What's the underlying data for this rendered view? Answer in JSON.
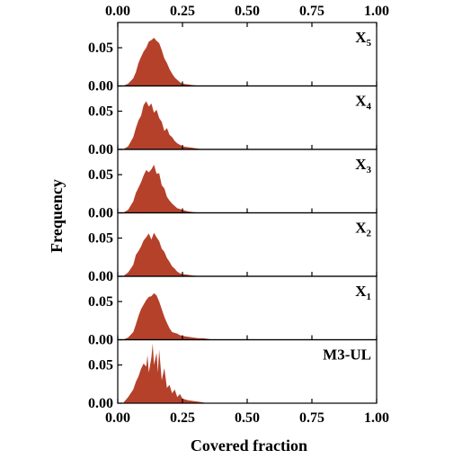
{
  "chart_data": {
    "type": "area",
    "xlabel": "Covered fraction",
    "ylabel": "Frequency",
    "xlim": [
      0,
      1.0
    ],
    "xticks": [
      "0.00",
      "0.25",
      "0.50",
      "0.75",
      "1.00"
    ],
    "ylim": [
      0,
      0.083
    ],
    "yticks": [
      "0.00",
      "0.05"
    ],
    "fill_color": "#b5412b",
    "panels": [
      {
        "label": "X",
        "subscript": "5",
        "x": [
          0.02,
          0.04,
          0.06,
          0.07,
          0.08,
          0.09,
          0.1,
          0.11,
          0.12,
          0.13,
          0.14,
          0.15,
          0.16,
          0.17,
          0.18,
          0.19,
          0.2,
          0.21,
          0.22,
          0.23,
          0.24,
          0.25,
          0.27,
          0.29,
          0.31,
          0.33
        ],
        "values": [
          0.0,
          0.003,
          0.01,
          0.018,
          0.03,
          0.038,
          0.045,
          0.05,
          0.058,
          0.06,
          0.063,
          0.059,
          0.056,
          0.047,
          0.036,
          0.03,
          0.022,
          0.016,
          0.011,
          0.008,
          0.005,
          0.003,
          0.002,
          0.001,
          0.0005,
          0.0
        ]
      },
      {
        "label": "X",
        "subscript": "4",
        "x": [
          0.02,
          0.04,
          0.06,
          0.07,
          0.08,
          0.09,
          0.1,
          0.11,
          0.12,
          0.13,
          0.14,
          0.15,
          0.16,
          0.17,
          0.18,
          0.19,
          0.2,
          0.21,
          0.22,
          0.23,
          0.24,
          0.25,
          0.27,
          0.29,
          0.31,
          0.33
        ],
        "values": [
          0.0,
          0.004,
          0.016,
          0.028,
          0.038,
          0.044,
          0.058,
          0.063,
          0.056,
          0.06,
          0.048,
          0.052,
          0.041,
          0.036,
          0.024,
          0.028,
          0.019,
          0.016,
          0.011,
          0.008,
          0.006,
          0.004,
          0.003,
          0.002,
          0.001,
          0.0
        ]
      },
      {
        "label": "X",
        "subscript": "3",
        "x": [
          0.02,
          0.04,
          0.06,
          0.07,
          0.08,
          0.09,
          0.1,
          0.11,
          0.12,
          0.13,
          0.14,
          0.15,
          0.16,
          0.17,
          0.18,
          0.19,
          0.2,
          0.21,
          0.22,
          0.23,
          0.24,
          0.25,
          0.27,
          0.29,
          0.31,
          0.33
        ],
        "values": [
          0.0,
          0.004,
          0.015,
          0.026,
          0.033,
          0.04,
          0.049,
          0.056,
          0.053,
          0.057,
          0.063,
          0.051,
          0.052,
          0.036,
          0.032,
          0.021,
          0.016,
          0.012,
          0.009,
          0.006,
          0.005,
          0.004,
          0.002,
          0.001,
          0.0005,
          0.0
        ]
      },
      {
        "label": "X",
        "subscript": "2",
        "x": [
          0.02,
          0.04,
          0.06,
          0.07,
          0.08,
          0.09,
          0.1,
          0.11,
          0.12,
          0.13,
          0.14,
          0.15,
          0.16,
          0.17,
          0.18,
          0.19,
          0.2,
          0.21,
          0.22,
          0.23,
          0.24,
          0.25,
          0.27,
          0.29,
          0.31,
          0.33
        ],
        "values": [
          0.0,
          0.005,
          0.015,
          0.028,
          0.033,
          0.039,
          0.047,
          0.051,
          0.056,
          0.048,
          0.057,
          0.051,
          0.046,
          0.036,
          0.032,
          0.024,
          0.019,
          0.013,
          0.01,
          0.006,
          0.004,
          0.003,
          0.002,
          0.001,
          0.0005,
          0.0
        ]
      },
      {
        "label": "X",
        "subscript": "1",
        "x": [
          0.02,
          0.04,
          0.06,
          0.07,
          0.08,
          0.09,
          0.1,
          0.11,
          0.12,
          0.13,
          0.14,
          0.15,
          0.16,
          0.17,
          0.18,
          0.19,
          0.2,
          0.21,
          0.22,
          0.23,
          0.24,
          0.25,
          0.27,
          0.29,
          0.31,
          0.33,
          0.35,
          0.37
        ],
        "values": [
          0.0,
          0.003,
          0.01,
          0.02,
          0.031,
          0.04,
          0.046,
          0.052,
          0.056,
          0.057,
          0.061,
          0.058,
          0.05,
          0.04,
          0.03,
          0.022,
          0.015,
          0.01,
          0.009,
          0.008,
          0.006,
          0.005,
          0.004,
          0.003,
          0.002,
          0.002,
          0.001,
          0.0
        ]
      },
      {
        "label": "M3-UL",
        "subscript": "",
        "x": [
          0.02,
          0.04,
          0.06,
          0.07,
          0.08,
          0.09,
          0.1,
          0.11,
          0.115,
          0.12,
          0.13,
          0.135,
          0.14,
          0.15,
          0.155,
          0.16,
          0.17,
          0.18,
          0.19,
          0.2,
          0.21,
          0.22,
          0.23,
          0.24,
          0.25,
          0.27,
          0.29,
          0.31,
          0.33,
          0.34
        ],
        "values": [
          0.0,
          0.008,
          0.018,
          0.028,
          0.035,
          0.045,
          0.052,
          0.048,
          0.063,
          0.04,
          0.06,
          0.078,
          0.05,
          0.066,
          0.04,
          0.07,
          0.03,
          0.046,
          0.02,
          0.024,
          0.013,
          0.018,
          0.008,
          0.012,
          0.006,
          0.004,
          0.003,
          0.002,
          0.001,
          0.0
        ]
      }
    ]
  }
}
